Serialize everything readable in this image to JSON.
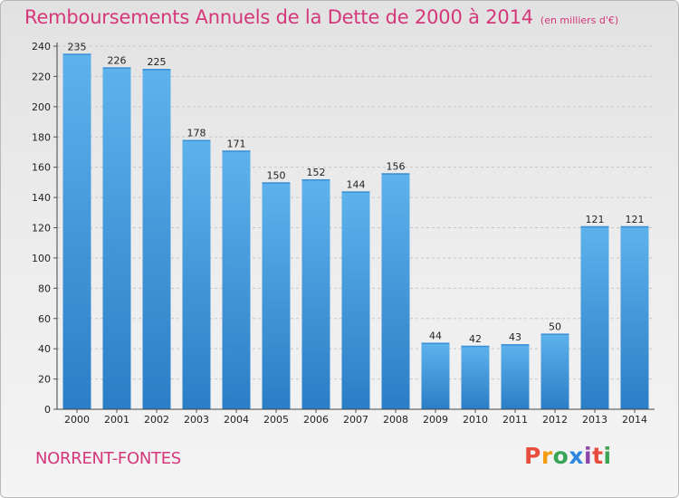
{
  "chart_data": {
    "type": "bar",
    "title": "Remboursements Annuels de la Dette de 2000 à 2014",
    "subtitle": "(en milliers d'€)",
    "categories": [
      "2000",
      "2001",
      "2002",
      "2003",
      "2004",
      "2005",
      "2006",
      "2007",
      "2008",
      "2009",
      "2010",
      "2011",
      "2012",
      "2013",
      "2014"
    ],
    "values": [
      235,
      226,
      225,
      178,
      171,
      150,
      152,
      144,
      156,
      44,
      42,
      43,
      50,
      121,
      121
    ],
    "ylim": [
      0,
      240
    ],
    "yticks": [
      0,
      20,
      40,
      60,
      80,
      100,
      120,
      140,
      160,
      180,
      200,
      220,
      240
    ],
    "grid": true,
    "bar_color_top": "#5aaeea",
    "bar_color_bottom": "#2a7fc8",
    "xlabel": "",
    "ylabel": ""
  },
  "footer": {
    "commune": "NORRENT-FONTES",
    "logo_letters": [
      "P",
      "r",
      "o",
      "x",
      "i",
      "t",
      "i"
    ]
  },
  "colors": {
    "title": "#d4377a"
  }
}
